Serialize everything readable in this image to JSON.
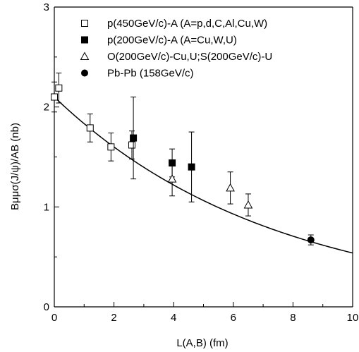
{
  "chart_data": {
    "type": "scatter",
    "xlabel": "L(A,B) (fm)",
    "ylabel": "Bμμσ(J/ψ)/AB (nb)",
    "xlim": [
      0,
      10
    ],
    "ylim": [
      0,
      3
    ],
    "x_ticks": [
      "0",
      "2",
      "4",
      "6",
      "8",
      "10"
    ],
    "y_ticks": [
      "0",
      "1",
      "2",
      "3"
    ],
    "grid": false,
    "legend_position": "top-right",
    "series": [
      {
        "name": "p(450GeV/c)-A (A=p,d,C,Al,Cu,W)",
        "marker": "open-square",
        "points": [
          {
            "x": 0.0,
            "y": 2.1,
            "err": 0.15
          },
          {
            "x": 0.15,
            "y": 2.19,
            "err": 0.15
          },
          {
            "x": 1.2,
            "y": 1.79,
            "err": 0.14
          },
          {
            "x": 1.9,
            "y": 1.6,
            "err": 0.14
          },
          {
            "x": 2.6,
            "y": 1.62,
            "err": 0.14
          }
        ]
      },
      {
        "name": "p(200GeV/c)-A (A=Cu,W,U)",
        "marker": "filled-square",
        "points": [
          {
            "x": 2.65,
            "y": 1.69,
            "err": 0.41
          },
          {
            "x": 3.95,
            "y": 1.44,
            "err": 0.14
          },
          {
            "x": 4.6,
            "y": 1.4,
            "err": 0.35
          }
        ]
      },
      {
        "name": "O(200GeV/c)-Cu,U;S(200GeV/c)-U",
        "marker": "open-triangle",
        "points": [
          {
            "x": 3.95,
            "y": 1.28,
            "err": 0.17
          },
          {
            "x": 5.9,
            "y": 1.19,
            "err": 0.16
          },
          {
            "x": 6.5,
            "y": 1.02,
            "err": 0.11
          }
        ]
      },
      {
        "name": "Pb-Pb (158GeV/c)",
        "marker": "filled-circle",
        "points": [
          {
            "x": 8.6,
            "y": 0.67,
            "err": 0.05
          }
        ]
      }
    ],
    "fit_curve": {
      "form": "exponential",
      "a": 2.1,
      "b": 0.136
    }
  }
}
